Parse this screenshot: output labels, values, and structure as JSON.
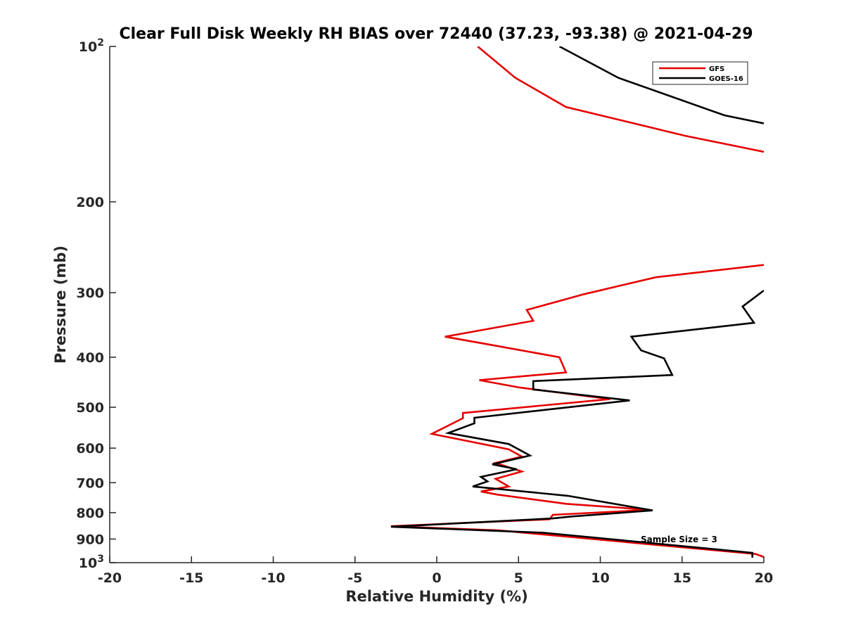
{
  "chart_data": {
    "type": "line",
    "title": "Clear Full Disk Weekly RH BIAS over 72440 (37.23, -93.38) @ 2021-04-29",
    "xlabel": "Relative Humidity (%)",
    "ylabel": "Pressure (mb)",
    "xlim": [
      -20,
      20
    ],
    "ylim": [
      100,
      1000
    ],
    "y_scale": "log",
    "y_reversed": true,
    "grid": false,
    "legend_position": "top-right",
    "x_ticks": [
      -20,
      -15,
      -10,
      -5,
      0,
      5,
      10,
      15,
      20
    ],
    "x_tick_labels": [
      "-20",
      "-15",
      "-10",
      "-5",
      "0",
      "5",
      "10",
      "15",
      "20"
    ],
    "y_ticks": [
      100,
      200,
      300,
      400,
      500,
      600,
      700,
      800,
      900,
      1000
    ],
    "y_tick_labels": [
      {
        "base": "10",
        "sup": "2"
      },
      {
        "text": "200"
      },
      {
        "text": "300"
      },
      {
        "text": "400"
      },
      {
        "text": "500"
      },
      {
        "text": "600"
      },
      {
        "text": "700"
      },
      {
        "text": "800"
      },
      {
        "text": "900"
      },
      {
        "base": "10",
        "sup": "3"
      }
    ],
    "annotation": "Sample Size = 3",
    "segments": [
      {
        "series": "GFS",
        "points": [
          [
            2.5,
            100
          ],
          [
            4.8,
            115
          ],
          [
            7.9,
            131
          ],
          [
            15.2,
            149
          ],
          [
            20,
            160
          ]
        ]
      },
      {
        "series": "GFS",
        "points": [
          [
            20,
            265
          ],
          [
            13.4,
            280
          ],
          [
            9.0,
            302
          ],
          [
            5.5,
            324
          ],
          [
            5.9,
            340
          ],
          [
            0.5,
            365
          ],
          [
            2.8,
            376
          ],
          [
            7.5,
            400
          ],
          [
            7.9,
            428
          ],
          [
            2.6,
            443
          ],
          [
            5.1,
            458
          ],
          [
            10.6,
            482
          ],
          [
            1.6,
            513
          ],
          [
            1.6,
            525
          ],
          [
            -0.3,
            563
          ],
          [
            4.4,
            603
          ],
          [
            5.2,
            623
          ],
          [
            3.6,
            641
          ],
          [
            5.2,
            666
          ],
          [
            3.6,
            688
          ],
          [
            4.4,
            712
          ],
          [
            2.7,
            728
          ],
          [
            3.7,
            738
          ],
          [
            7.9,
            769
          ],
          [
            13.0,
            790
          ],
          [
            7.1,
            808
          ],
          [
            6.9,
            824
          ],
          [
            -2.8,
            850
          ],
          [
            3.8,
            866
          ],
          [
            19.5,
            962
          ],
          [
            20,
            975
          ]
        ]
      },
      {
        "series": "GOES-16",
        "points": [
          [
            7.5,
            100
          ],
          [
            11.1,
            115
          ],
          [
            17.6,
            136
          ],
          [
            20,
            141
          ]
        ]
      },
      {
        "series": "GOES-16",
        "points": [
          [
            20,
            297
          ],
          [
            18.7,
            319
          ],
          [
            19.4,
            343
          ],
          [
            11.9,
            365
          ],
          [
            12.5,
            388
          ],
          [
            13.9,
            402
          ],
          [
            14.4,
            433
          ],
          [
            5.9,
            445
          ],
          [
            5.9,
            462
          ],
          [
            11.8,
            485
          ],
          [
            7.8,
            501
          ],
          [
            2.3,
            524
          ],
          [
            2.3,
            537
          ],
          [
            0.7,
            561
          ],
          [
            4.4,
            589
          ],
          [
            5.0,
            603
          ],
          [
            5.7,
            620
          ],
          [
            3.4,
            645
          ],
          [
            4.9,
            659
          ],
          [
            2.7,
            682
          ],
          [
            3.1,
            696
          ],
          [
            2.2,
            712
          ],
          [
            8.0,
            742
          ],
          [
            13.2,
            792
          ],
          [
            8.2,
            814
          ],
          [
            7.1,
            821
          ],
          [
            -2.8,
            852
          ],
          [
            6.5,
            875
          ],
          [
            19.3,
            957
          ],
          [
            19.3,
            978
          ]
        ]
      }
    ],
    "series": [
      {
        "name": "GFS",
        "color": "#e60000"
      },
      {
        "name": "GOES-16",
        "color": "#000000"
      }
    ]
  }
}
